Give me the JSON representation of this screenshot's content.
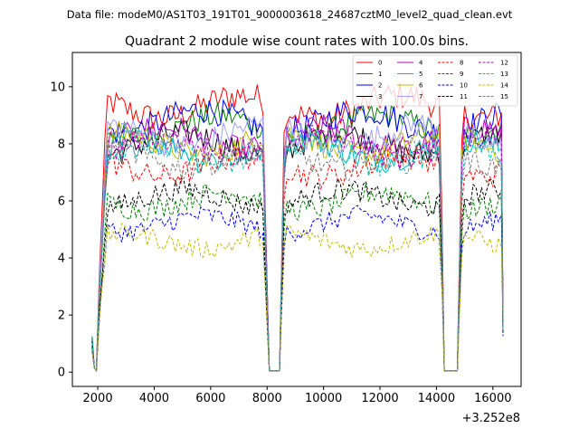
{
  "chart_data": {
    "type": "line",
    "suptitle": "Data file: modeM0/AS1T03_191T01_9000003618_24687cztM0_level2_quad_clean.evt",
    "title": "Quadrant 2 module wise count rates with 100.0s bins.",
    "xlabel": "",
    "ylabel": "",
    "offset_label": "+3.252e8",
    "xlim": [
      1100,
      17000
    ],
    "ylim": [
      -0.5,
      11.2
    ],
    "xticks": [
      2000,
      4000,
      6000,
      8000,
      10000,
      12000,
      14000,
      16000
    ],
    "yticks": [
      0,
      2,
      4,
      6,
      8,
      10
    ],
    "legend_position": "top-right",
    "segments": [
      {
        "start": 1800,
        "end": 8000
      },
      {
        "start": 8500,
        "end": 14200
      },
      {
        "start": 14800,
        "end": 16300
      }
    ],
    "series": [
      {
        "name": "0",
        "color": "#ff0000",
        "dash": "solid",
        "level": 9.3
      },
      {
        "name": "1",
        "color": "#008000",
        "dash": "solid",
        "level": 8.6
      },
      {
        "name": "2",
        "color": "#0000ff",
        "dash": "solid",
        "level": 8.8
      },
      {
        "name": "3",
        "color": "#000000",
        "dash": "solid",
        "level": 8.0
      },
      {
        "name": "4",
        "color": "#bf00bf",
        "dash": "solid",
        "level": 8.2
      },
      {
        "name": "5",
        "color": "#00bfbf",
        "dash": "solid",
        "level": 7.8
      },
      {
        "name": "6",
        "color": "#bfbf00",
        "dash": "solid",
        "level": 8.0
      },
      {
        "name": "7",
        "color": "#a0a0ff",
        "dash": "solid",
        "level": 8.3
      },
      {
        "name": "8",
        "color": "#ff0000",
        "dash": "dashed",
        "level": 7.2
      },
      {
        "name": "9",
        "color": "#008000",
        "dash": "dashed",
        "level": 6.0
      },
      {
        "name": "10",
        "color": "#0000ff",
        "dash": "dashed",
        "level": 5.2
      },
      {
        "name": "11",
        "color": "#000000",
        "dash": "dashed",
        "level": 6.1
      },
      {
        "name": "12",
        "color": "#bf00bf",
        "dash": "dashed",
        "level": 7.9
      },
      {
        "name": "13",
        "color": "#00bfbf",
        "dash": "dashed",
        "level": 7.6
      },
      {
        "name": "14",
        "color": "#bfbf00",
        "dash": "dashed",
        "level": 4.6
      },
      {
        "name": "15",
        "color": "#808080",
        "dash": "dashed",
        "level": 7.5
      }
    ]
  }
}
